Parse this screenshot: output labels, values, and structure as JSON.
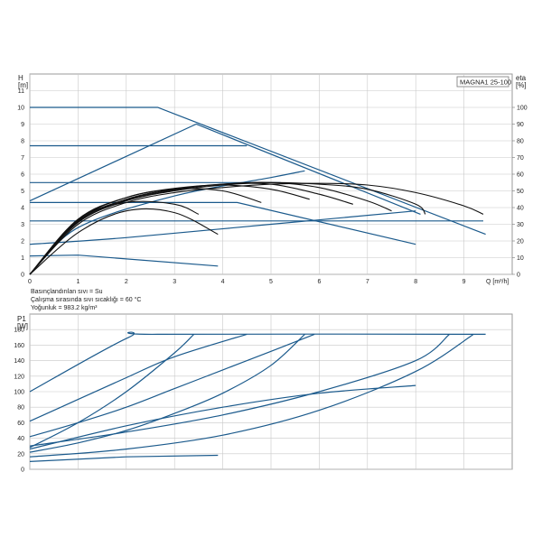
{
  "colors": {
    "blue": "#1b5a8c",
    "black": "#111111",
    "grid": "#c8c8c8",
    "text": "#222222"
  },
  "chart_data": [
    {
      "type": "line",
      "model": "MAGNA1 25-100",
      "y_unit_top": "H",
      "y_unit_bottom": "[m]",
      "y2_unit_top": "eta",
      "y2_unit_bottom": "[%]",
      "x_unit": "Q [m³/h]",
      "xlim": [
        0,
        10
      ],
      "ylim": [
        0,
        12
      ],
      "y2lim": [
        0,
        120
      ],
      "x_ticks": [
        "0",
        "1",
        "2",
        "3",
        "4",
        "5",
        "6",
        "7",
        "8",
        "9"
      ],
      "y_ticks": [
        "0",
        "1",
        "2",
        "3",
        "4",
        "5",
        "6",
        "7",
        "8",
        "9",
        "10",
        "11"
      ],
      "y2_ticks": [
        "0",
        "10",
        "20",
        "30",
        "40",
        "50",
        "60",
        "70",
        "80",
        "90",
        "100"
      ],
      "grid": true,
      "notes": [
        "Basınçlandırılan sıvı = Su",
        "Çalışma sırasında sıvı sıcaklığı = 60 °C",
        "Yoğunluk = 983.2 kg/m³"
      ],
      "series": [
        {
          "role": "head",
          "color": "blue",
          "x": [
            0,
            2.65,
            9.45
          ],
          "y": [
            10,
            10,
            2.4
          ]
        },
        {
          "role": "head",
          "color": "blue",
          "x": [
            0,
            3.45,
            8.1
          ],
          "y": [
            4.4,
            9,
            3.6
          ]
        },
        {
          "role": "head",
          "color": "blue",
          "x": [
            0,
            4.5
          ],
          "y": [
            7.7,
            7.7
          ]
        },
        {
          "role": "head",
          "color": "blue",
          "x": [
            0,
            5.2
          ],
          "y": [
            5.5,
            5.5
          ]
        },
        {
          "role": "head",
          "color": "blue",
          "x": [
            0,
            4.3,
            8.0
          ],
          "y": [
            4.3,
            4.3,
            1.8
          ]
        },
        {
          "role": "head",
          "color": "blue",
          "x": [
            0,
            9.4
          ],
          "y": [
            3.2,
            3.2
          ]
        },
        {
          "role": "head",
          "color": "blue",
          "x": [
            0,
            2.0,
            5.0,
            8.0
          ],
          "y": [
            1.8,
            2.2,
            3.0,
            3.8
          ]
        },
        {
          "role": "head",
          "color": "blue",
          "x": [
            0,
            1.0,
            3.9
          ],
          "y": [
            1.1,
            1.15,
            0.5
          ]
        },
        {
          "role": "head",
          "color": "blue",
          "x": [
            0,
            1.0,
            3.0,
            5.0,
            5.7
          ],
          "y": [
            0,
            2.8,
            4.7,
            5.8,
            6.2
          ]
        },
        {
          "role": "efficiency",
          "color": "black",
          "x": [
            0,
            1,
            2,
            3,
            4,
            5,
            6,
            7,
            8,
            9,
            9.4
          ],
          "y": [
            0,
            30,
            43,
            49,
            52,
            54,
            54.5,
            53.5,
            49,
            41,
            36
          ]
        },
        {
          "role": "efficiency",
          "color": "black",
          "x": [
            0,
            1,
            2,
            3,
            4,
            5,
            6,
            7,
            8,
            8.2
          ],
          "y": [
            0,
            31,
            44,
            50,
            53.5,
            55,
            54,
            51,
            42,
            36
          ]
        },
        {
          "role": "efficiency",
          "color": "black",
          "x": [
            0,
            1,
            2,
            3,
            4,
            5,
            6,
            7,
            7.5
          ],
          "y": [
            0,
            31.5,
            44.5,
            50.5,
            54,
            55,
            52,
            44,
            38
          ]
        },
        {
          "role": "efficiency",
          "color": "black",
          "x": [
            0,
            1,
            2,
            3,
            4,
            5,
            6,
            6.7
          ],
          "y": [
            0,
            32,
            45,
            51,
            54,
            54,
            48,
            42
          ]
        },
        {
          "role": "efficiency",
          "color": "black",
          "x": [
            0,
            1,
            2,
            3,
            4,
            5,
            5.8
          ],
          "y": [
            0,
            32.5,
            46,
            51.5,
            53.5,
            51,
            45
          ]
        },
        {
          "role": "efficiency",
          "color": "black",
          "x": [
            0,
            1,
            2,
            3,
            4,
            4.8
          ],
          "y": [
            0,
            33,
            46,
            51,
            50,
            43
          ]
        },
        {
          "role": "efficiency",
          "color": "black",
          "x": [
            0,
            1,
            2,
            3,
            3.5
          ],
          "y": [
            0,
            33,
            43,
            42,
            36
          ]
        },
        {
          "role": "efficiency",
          "color": "black",
          "x": [
            0,
            1,
            2,
            3,
            3.9
          ],
          "y": [
            0,
            25,
            38,
            37,
            24
          ]
        }
      ]
    },
    {
      "type": "line",
      "y_unit_top": "P1",
      "y_unit_bottom": "[W]",
      "xlim": [
        0,
        10
      ],
      "ylim": [
        0,
        200
      ],
      "y_ticks": [
        "0",
        "20",
        "40",
        "60",
        "80",
        "100",
        "120",
        "140",
        "160",
        "180"
      ],
      "grid": true,
      "series": [
        {
          "color": "blue",
          "x": [
            0,
            2.05,
            2.65,
            9.45
          ],
          "y": [
            100,
            170,
            174,
            174
          ]
        },
        {
          "color": "blue",
          "x": [
            0,
            1.0,
            2.0,
            3.0,
            4.5
          ],
          "y": [
            62,
            90,
            118,
            145,
            174
          ]
        },
        {
          "color": "blue",
          "x": [
            0,
            1.0,
            2.0,
            3.0,
            3.4
          ],
          "y": [
            28,
            60,
            100,
            150,
            174
          ]
        },
        {
          "color": "blue",
          "x": [
            0,
            1.0,
            2.0,
            3.0,
            4.0,
            5.0,
            5.9
          ],
          "y": [
            42,
            60,
            80,
            104,
            128,
            152,
            174
          ]
        },
        {
          "color": "blue",
          "x": [
            0,
            1.0,
            2.0,
            3.0,
            4.0,
            5.0,
            5.7
          ],
          "y": [
            22,
            34,
            50,
            72,
            98,
            134,
            174
          ]
        },
        {
          "color": "blue",
          "x": [
            0,
            2.0,
            4.0,
            6.0,
            8.0,
            8.7
          ],
          "y": [
            30,
            48,
            70,
            100,
            140,
            174
          ]
        },
        {
          "color": "blue",
          "x": [
            0,
            2.0,
            4.0,
            6.0,
            8.0,
            9.2
          ],
          "y": [
            16,
            26,
            44,
            76,
            126,
            174
          ]
        },
        {
          "color": "blue",
          "x": [
            0,
            2.0,
            4.0,
            6.0,
            8.0
          ],
          "y": [
            26,
            56,
            80,
            98,
            108
          ]
        },
        {
          "color": "blue",
          "x": [
            0,
            2.0,
            3.9
          ],
          "y": [
            10,
            16,
            18
          ]
        }
      ]
    }
  ]
}
